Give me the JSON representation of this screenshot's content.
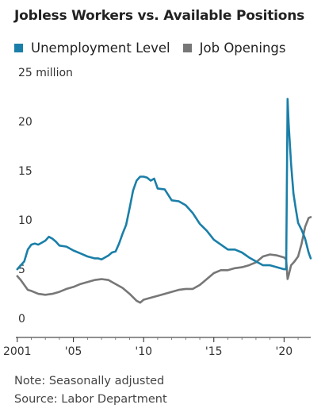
{
  "chart_data": {
    "type": "line",
    "title": "Jobless Workers vs. Available Positions",
    "y_unit_label": "25 million",
    "y_ticks": [
      "0",
      "5",
      "10",
      "15",
      "20",
      "25 million"
    ],
    "y_tick_values": [
      0,
      5,
      10,
      15,
      20,
      25
    ],
    "x_ticks": [
      "2001",
      "'05",
      "'10",
      "'15",
      "'20"
    ],
    "x_tick_values": [
      2001,
      2005,
      2010,
      2015,
      2020
    ],
    "xlim": [
      2000.9,
      2021.9
    ],
    "ylim": [
      0,
      25
    ],
    "grid": false,
    "legend_position": "top",
    "series": [
      {
        "name": "Unemployment Level",
        "color": "#1a7fa8",
        "x": [
          2001.0,
          2001.25,
          2001.5,
          2001.75,
          2002.0,
          2002.25,
          2002.5,
          2002.75,
          2003.0,
          2003.25,
          2003.5,
          2003.75,
          2004.0,
          2004.5,
          2005.0,
          2005.5,
          2006.0,
          2006.5,
          2006.75,
          2007.0,
          2007.5,
          2007.75,
          2008.0,
          2008.25,
          2008.5,
          2008.75,
          2009.0,
          2009.25,
          2009.5,
          2009.75,
          2010.0,
          2010.25,
          2010.5,
          2010.75,
          2011.0,
          2011.5,
          2012.0,
          2012.5,
          2013.0,
          2013.5,
          2014.0,
          2014.5,
          2015.0,
          2015.5,
          2016.0,
          2016.5,
          2017.0,
          2017.5,
          2018.0,
          2018.5,
          2019.0,
          2019.5,
          2020.0,
          2020.15,
          2020.25,
          2020.33,
          2020.5,
          2020.67,
          2020.83,
          2021.0,
          2021.25,
          2021.5,
          2021.75,
          2021.9
        ],
        "values": [
          5.8,
          6.2,
          6.6,
          7.8,
          8.3,
          8.4,
          8.3,
          8.5,
          8.7,
          9.1,
          8.9,
          8.6,
          8.2,
          8.1,
          7.7,
          7.4,
          7.1,
          6.9,
          6.9,
          6.8,
          7.2,
          7.5,
          7.6,
          8.4,
          9.4,
          10.3,
          12.0,
          13.8,
          14.8,
          15.2,
          15.2,
          15.1,
          14.8,
          15.0,
          14.0,
          13.9,
          12.8,
          12.7,
          12.3,
          11.5,
          10.4,
          9.7,
          8.8,
          8.3,
          7.8,
          7.8,
          7.5,
          7.0,
          6.6,
          6.2,
          6.2,
          6.0,
          5.8,
          5.8,
          23.1,
          20.5,
          16.5,
          13.5,
          12.0,
          10.5,
          9.8,
          8.9,
          7.5,
          6.9
        ]
      },
      {
        "name": "Job Openings",
        "color": "#777777",
        "x": [
          2001.0,
          2001.25,
          2001.5,
          2001.75,
          2002.0,
          2002.5,
          2003.0,
          2003.5,
          2004.0,
          2004.5,
          2005.0,
          2005.5,
          2006.0,
          2006.5,
          2007.0,
          2007.5,
          2008.0,
          2008.5,
          2009.0,
          2009.5,
          2009.75,
          2010.0,
          2010.5,
          2011.0,
          2011.5,
          2012.0,
          2012.5,
          2013.0,
          2013.5,
          2014.0,
          2014.5,
          2015.0,
          2015.5,
          2016.0,
          2016.5,
          2017.0,
          2017.5,
          2018.0,
          2018.5,
          2019.0,
          2019.5,
          2020.0,
          2020.15,
          2020.25,
          2020.33,
          2020.5,
          2020.75,
          2021.0,
          2021.25,
          2021.5,
          2021.75,
          2021.9
        ],
        "values": [
          5.1,
          4.7,
          4.2,
          3.7,
          3.6,
          3.3,
          3.2,
          3.3,
          3.5,
          3.8,
          4.0,
          4.3,
          4.5,
          4.7,
          4.8,
          4.7,
          4.3,
          3.9,
          3.3,
          2.6,
          2.4,
          2.7,
          2.9,
          3.1,
          3.3,
          3.5,
          3.7,
          3.8,
          3.8,
          4.2,
          4.8,
          5.4,
          5.7,
          5.7,
          5.9,
          6.0,
          6.2,
          6.5,
          7.1,
          7.3,
          7.2,
          7.0,
          6.8,
          4.8,
          5.2,
          6.2,
          6.6,
          7.1,
          8.4,
          10.1,
          11.0,
          11.1
        ]
      }
    ],
    "notes": [
      "Note: Seasonally adjusted",
      "Source: Labor Department"
    ]
  }
}
